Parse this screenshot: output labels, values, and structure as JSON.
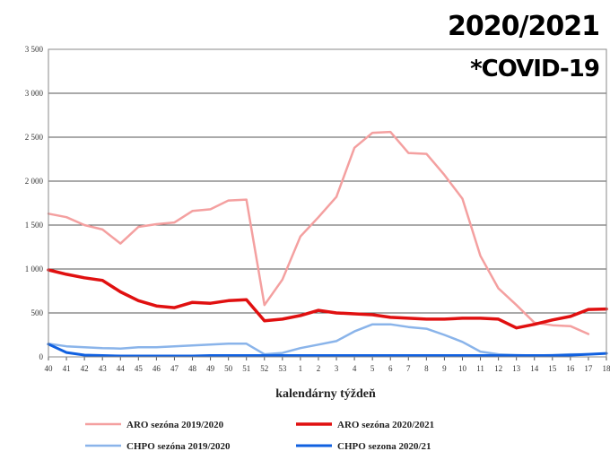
{
  "header": {
    "season": "2020/2021",
    "note": "*COVID-19"
  },
  "chart_data": {
    "type": "line",
    "xlabel": "kalendárny týždeň",
    "ylabel": "",
    "ylim": [
      0,
      3500
    ],
    "yticks": [
      0,
      500,
      1000,
      1500,
      2000,
      2500,
      3000,
      3500
    ],
    "ytick_labels": [
      "0",
      "500",
      "1 000",
      "1 500",
      "2 000",
      "2 500",
      "3 000",
      "3 500"
    ],
    "grid": "horizontal",
    "legend_position": "bottom",
    "categories": [
      "40",
      "41",
      "42",
      "43",
      "44",
      "45",
      "46",
      "47",
      "48",
      "49",
      "50",
      "51",
      "52",
      "53",
      "1",
      "2",
      "3",
      "4",
      "5",
      "6",
      "7",
      "8",
      "9",
      "10",
      "11",
      "12",
      "13",
      "14",
      "15",
      "16",
      "17",
      "18"
    ],
    "series": [
      {
        "name": "ARO sezóna 2019/2020",
        "color": "#f4a0a0",
        "width": 2.5,
        "values": [
          1630,
          1590,
          1500,
          1450,
          1290,
          1480,
          1510,
          1530,
          1660,
          1680,
          1780,
          1790,
          590,
          880,
          1370,
          1590,
          1820,
          2380,
          2550,
          2560,
          2320,
          2310,
          2070,
          1800,
          1150,
          780,
          590,
          390,
          360,
          350,
          260,
          null
        ]
      },
      {
        "name": "ARO sezóna 2020/2021",
        "color": "#e01010",
        "width": 3.5,
        "values": [
          990,
          940,
          900,
          870,
          740,
          640,
          580,
          560,
          620,
          610,
          640,
          650,
          410,
          430,
          470,
          530,
          500,
          490,
          480,
          450,
          440,
          430,
          430,
          440,
          440,
          430,
          330,
          370,
          420,
          460,
          540,
          545
        ]
      },
      {
        "name": "CHPO sezóna 2019/2020",
        "color": "#8ab4ea",
        "width": 2.5,
        "values": [
          150,
          120,
          110,
          100,
          95,
          110,
          110,
          120,
          130,
          140,
          150,
          150,
          30,
          45,
          100,
          140,
          180,
          290,
          370,
          370,
          340,
          320,
          250,
          170,
          60,
          30,
          20,
          15,
          20,
          30,
          30,
          null
        ]
      },
      {
        "name": "CHPO sezona 2020/21",
        "color": "#1060e0",
        "width": 3,
        "values": [
          145,
          50,
          20,
          15,
          10,
          10,
          10,
          10,
          10,
          15,
          15,
          15,
          15,
          15,
          15,
          15,
          15,
          15,
          15,
          15,
          15,
          15,
          15,
          15,
          15,
          15,
          15,
          15,
          15,
          20,
          30,
          40
        ]
      }
    ]
  }
}
